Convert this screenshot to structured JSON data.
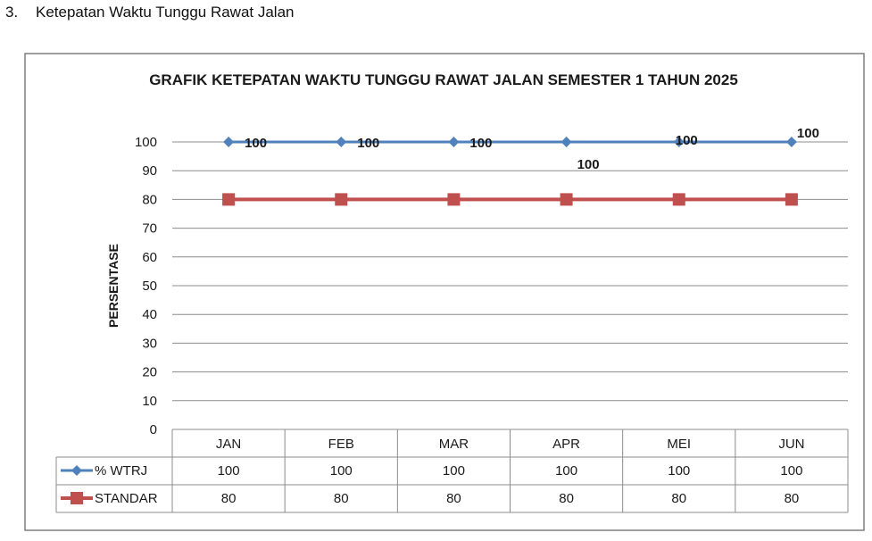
{
  "heading": {
    "number": "3.",
    "text": "Ketepatan Waktu Tunggu Rawat Jalan"
  },
  "colors": {
    "wtrj": "#4f81bd",
    "standar": "#c0504d",
    "grid": "#8c8c8c",
    "frame": "#7f7f7f"
  },
  "chart_data": {
    "type": "line",
    "title": "GRAFIK KETEPATAN WAKTU TUNGGU RAWAT JALAN SEMESTER 1 TAHUN 2025",
    "xlabel": "",
    "ylabel": "PERSENTASE",
    "ylim": [
      0,
      100
    ],
    "yticks": [
      0,
      10,
      20,
      30,
      40,
      50,
      60,
      70,
      80,
      90,
      100
    ],
    "grid": true,
    "categories": [
      "JAN",
      "FEB",
      "MAR",
      "APR",
      "MEI",
      "JUN"
    ],
    "series": [
      {
        "name": "% WTRJ",
        "values": [
          100,
          100,
          100,
          100,
          100,
          100
        ],
        "data_labels": [
          "100",
          "100",
          "100",
          "100",
          "100",
          "100"
        ]
      },
      {
        "name": "STANDAR",
        "values": [
          80,
          80,
          80,
          80,
          80,
          80
        ]
      }
    ],
    "legend": "data table below chart"
  }
}
